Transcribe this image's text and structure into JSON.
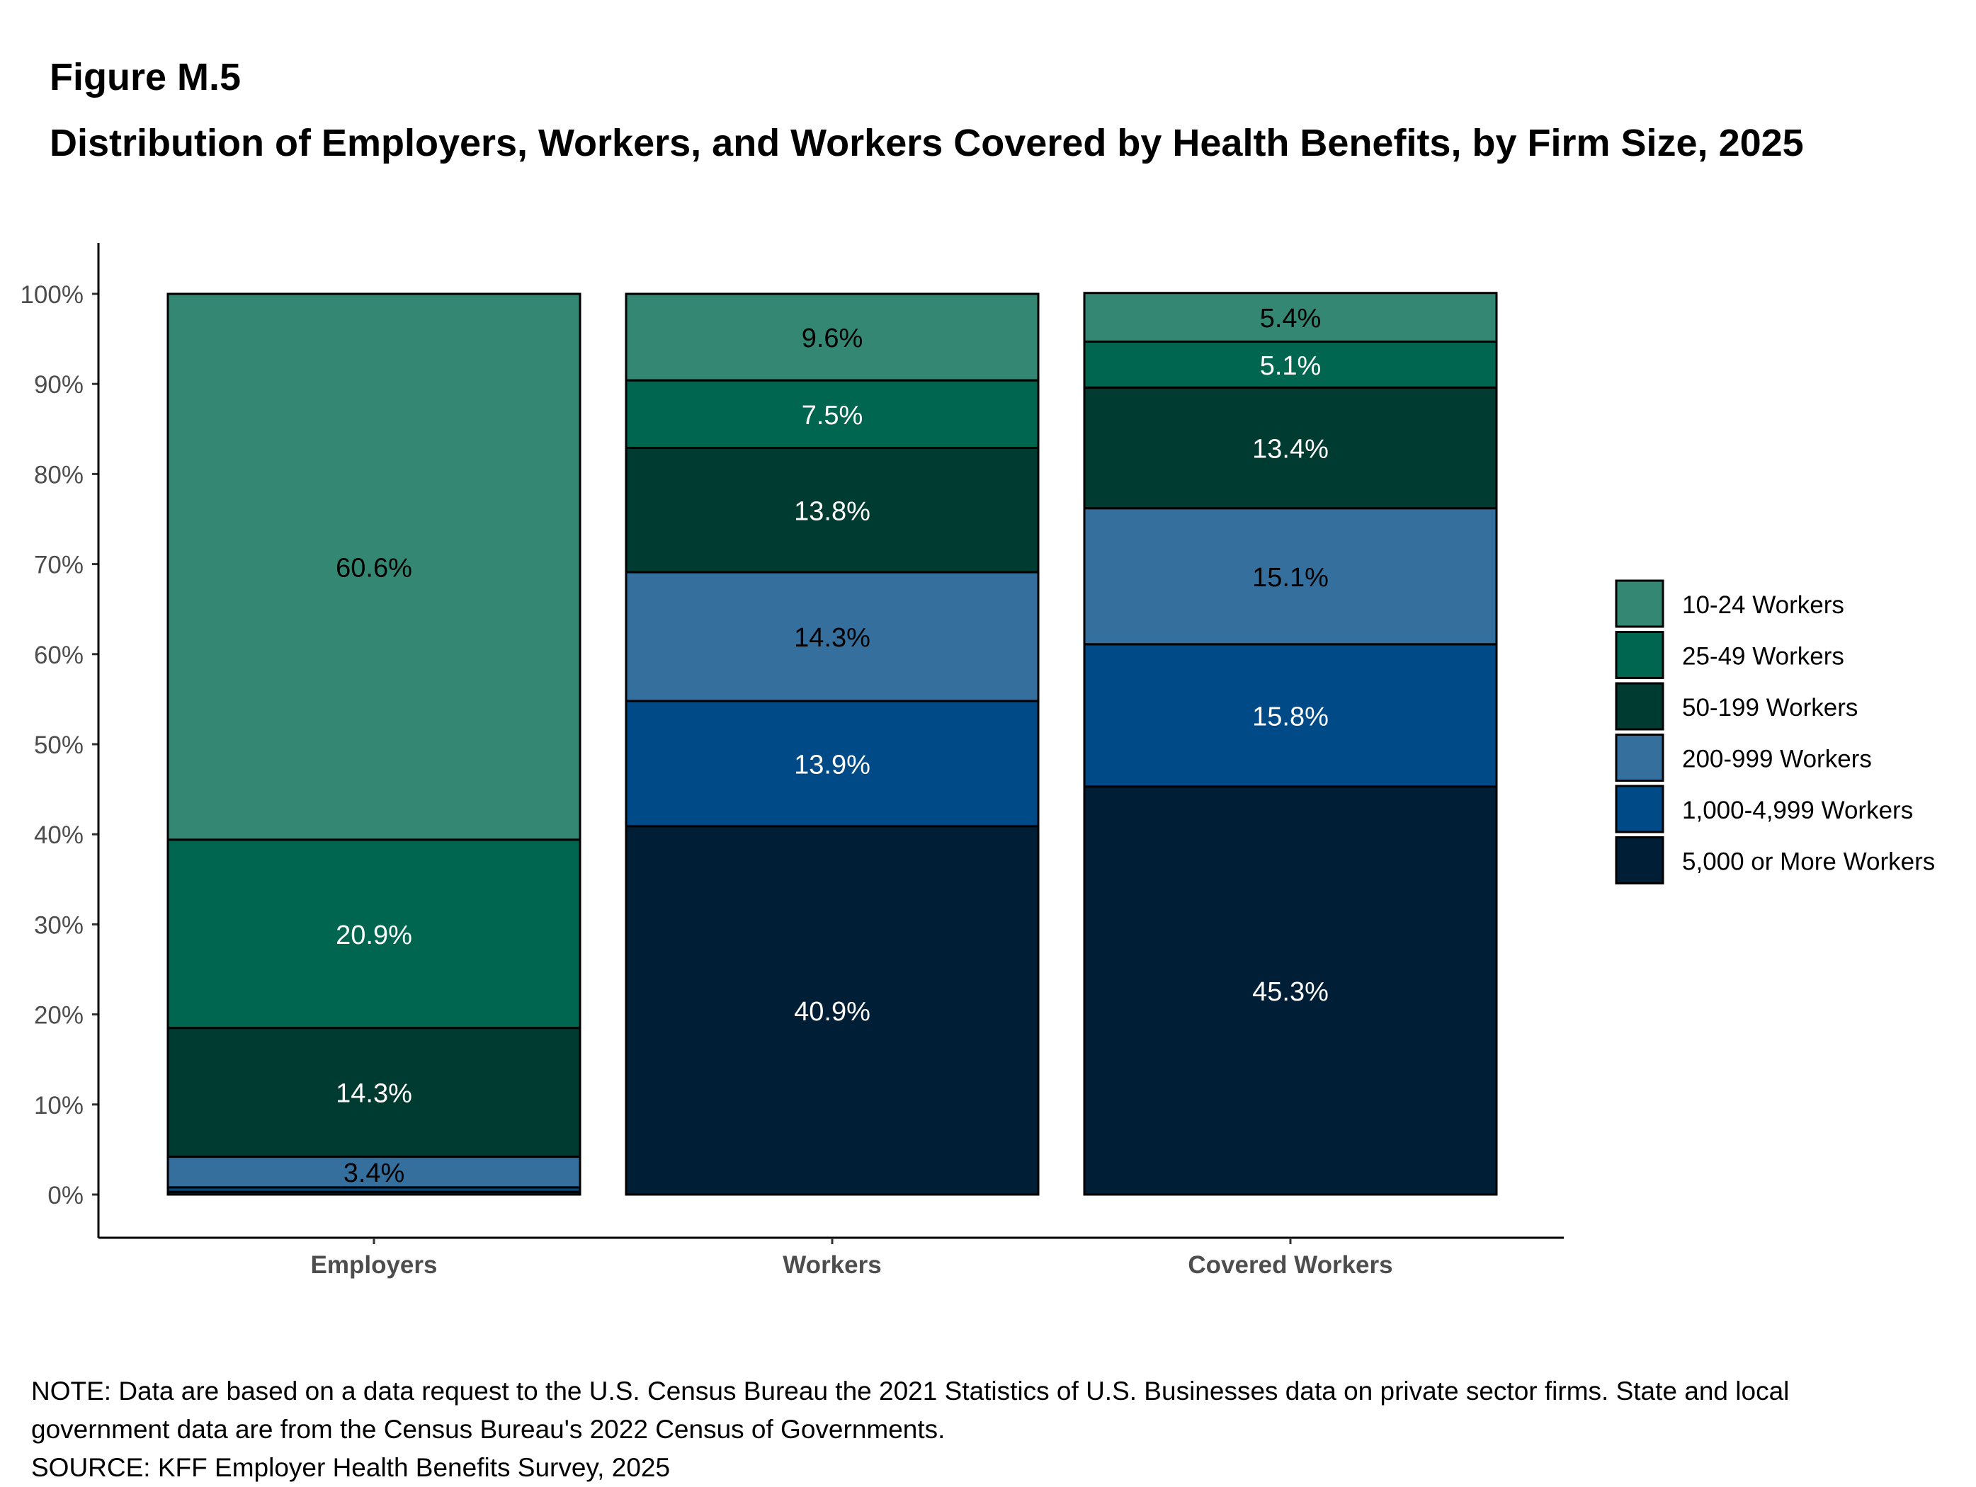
{
  "figure_label": "Figure M.5",
  "title": "Distribution of Employers, Workers, and Workers Covered by Health Benefits, by Firm Size, 2025",
  "note_lines": [
    "NOTE: Data are based on a data request to the U.S. Census Bureau the 2021 Statistics of U.S. Businesses data on private sector firms. State and local",
    "government data are from the Census Bureau's 2022 Census of Governments."
  ],
  "source": "SOURCE: KFF Employer Health Benefits Survey, 2025",
  "chart_data": {
    "type": "bar",
    "stacked": true,
    "categories": [
      "Employers",
      "Workers",
      "Covered Workers"
    ],
    "series": [
      {
        "name": "10-24 Workers",
        "color": "#348773",
        "values": [
          60.6,
          9.6,
          5.4
        ],
        "labels": [
          "60.6%",
          "9.6%",
          "5.4%"
        ],
        "label_color": "#000000"
      },
      {
        "name": "25-49 Workers",
        "color": "#00664F",
        "values": [
          20.9,
          7.5,
          5.1
        ],
        "labels": [
          "20.9%",
          "7.5%",
          "5.1%"
        ],
        "label_color": "#FFFFFF"
      },
      {
        "name": "50-199 Workers",
        "color": "#003B32",
        "values": [
          14.3,
          13.8,
          13.4
        ],
        "labels": [
          "14.3%",
          "13.8%",
          "13.4%"
        ],
        "label_color": "#FFFFFF"
      },
      {
        "name": "200-999 Workers",
        "color": "#356F9E",
        "values": [
          3.4,
          14.3,
          15.1
        ],
        "labels": [
          "3.4%",
          "14.3%",
          "15.1%"
        ],
        "label_color": "#000000"
      },
      {
        "name": "1,000-4,999 Workers",
        "color": "#004A87",
        "values": [
          0.5,
          13.9,
          15.8
        ],
        "labels": [
          "",
          "13.9%",
          "15.8%"
        ],
        "label_color": "#FFFFFF"
      },
      {
        "name": "5,000 or More Workers",
        "color": "#001F37",
        "values": [
          0.3,
          40.9,
          45.3
        ],
        "labels": [
          "",
          "40.9%",
          "45.3%"
        ],
        "label_color": "#FFFFFF"
      }
    ],
    "yticks": [
      "0%",
      "10%",
      "20%",
      "30%",
      "40%",
      "50%",
      "60%",
      "70%",
      "80%",
      "90%",
      "100%"
    ],
    "ylim": [
      0,
      100
    ],
    "xlabel": "",
    "ylabel": "",
    "legend_position": "right",
    "grid": false
  }
}
